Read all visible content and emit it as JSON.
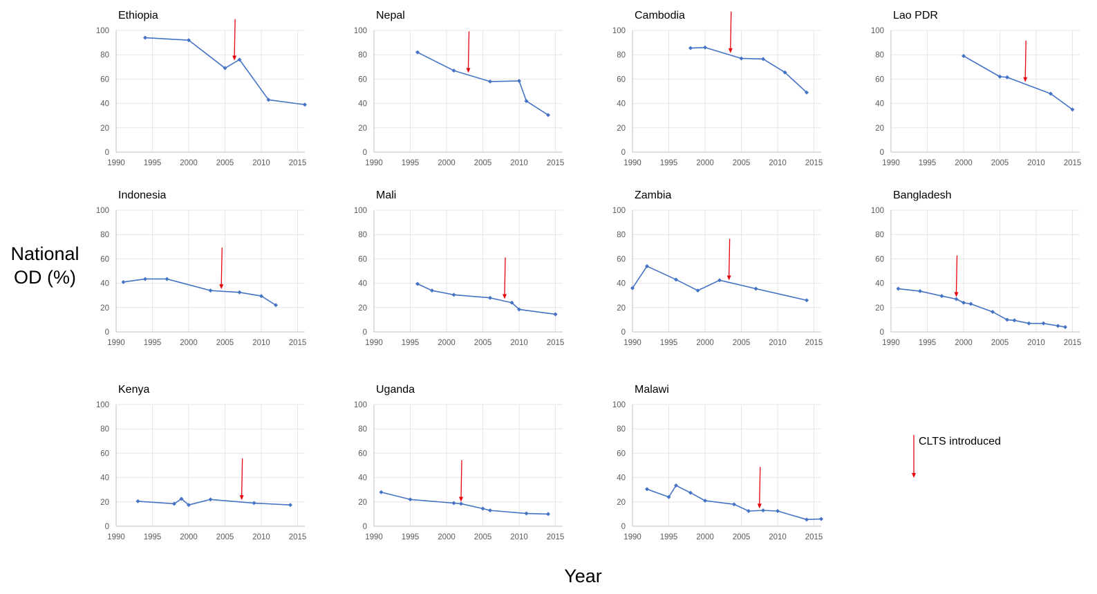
{
  "figure": {
    "y_label_line1": "National",
    "y_label_line2": "OD (%)",
    "x_label": "Year",
    "legend_label": "CLTS introduced",
    "line_color": "#4472C4",
    "arrow_color": "#E8000B"
  },
  "chart_data": [
    {
      "type": "line",
      "title": "Ethiopia",
      "xlim": [
        1990,
        2016
      ],
      "ylim": [
        0,
        100
      ],
      "x_ticks": [
        1990,
        1995,
        2000,
        2005,
        2010,
        2015
      ],
      "y_ticks": [
        0,
        20,
        40,
        60,
        80,
        100
      ],
      "grid": true,
      "x": [
        1994,
        2000,
        2005,
        2007,
        2011,
        2016
      ],
      "y": [
        94,
        92,
        69,
        76,
        43,
        39
      ],
      "clts_year": 2006.3
    },
    {
      "type": "line",
      "title": "Nepal",
      "xlim": [
        1990,
        2016
      ],
      "ylim": [
        0,
        100
      ],
      "x_ticks": [
        1990,
        1995,
        2000,
        2005,
        2010,
        2015
      ],
      "y_ticks": [
        0,
        20,
        40,
        60,
        80,
        100
      ],
      "grid": true,
      "x": [
        1996,
        2001,
        2006,
        2010,
        2011,
        2014
      ],
      "y": [
        82,
        67,
        58,
        58.5,
        42,
        30.5
      ],
      "clts_year": 2003
    },
    {
      "type": "line",
      "title": "Cambodia",
      "xlim": [
        1990,
        2016
      ],
      "ylim": [
        0,
        100
      ],
      "x_ticks": [
        1990,
        1995,
        2000,
        2005,
        2010,
        2015
      ],
      "y_ticks": [
        0,
        20,
        40,
        60,
        80,
        100
      ],
      "grid": true,
      "x": [
        1998,
        2000,
        2005,
        2008,
        2011,
        2014
      ],
      "y": [
        85.5,
        86,
        77,
        76.5,
        65.5,
        49
      ],
      "clts_year": 2003.5
    },
    {
      "type": "line",
      "title": "Lao PDR",
      "xlim": [
        1990,
        2016
      ],
      "ylim": [
        0,
        100
      ],
      "x_ticks": [
        1990,
        1995,
        2000,
        2005,
        2010,
        2015
      ],
      "y_ticks": [
        0,
        20,
        40,
        60,
        80,
        100
      ],
      "grid": true,
      "x": [
        2000,
        2005,
        2006,
        2012,
        2015
      ],
      "y": [
        79,
        62,
        61.5,
        48,
        35
      ],
      "clts_year": 2008.5
    },
    {
      "type": "line",
      "title": "Indonesia",
      "xlim": [
        1990,
        2016
      ],
      "ylim": [
        0,
        100
      ],
      "x_ticks": [
        1990,
        1995,
        2000,
        2005,
        2010,
        2015
      ],
      "y_ticks": [
        0,
        20,
        40,
        60,
        80,
        100
      ],
      "grid": true,
      "x": [
        1991,
        1994,
        1997,
        2003,
        2007,
        2010,
        2012
      ],
      "y": [
        41,
        43.5,
        43.5,
        34,
        32.5,
        29.5,
        22
      ],
      "clts_year": 2004.5
    },
    {
      "type": "line",
      "title": "Mali",
      "xlim": [
        1990,
        2016
      ],
      "ylim": [
        0,
        100
      ],
      "x_ticks": [
        1990,
        1995,
        2000,
        2005,
        2010,
        2015
      ],
      "y_ticks": [
        0,
        20,
        40,
        60,
        80,
        100
      ],
      "grid": true,
      "x": [
        1996,
        1998,
        2001,
        2006,
        2009,
        2010,
        2015
      ],
      "y": [
        39.5,
        34,
        30.5,
        28,
        24,
        18.5,
        14.5
      ],
      "clts_year": 2008
    },
    {
      "type": "line",
      "title": "Zambia",
      "xlim": [
        1990,
        2016
      ],
      "ylim": [
        0,
        100
      ],
      "x_ticks": [
        1990,
        1995,
        2000,
        2005,
        2010,
        2015
      ],
      "y_ticks": [
        0,
        20,
        40,
        60,
        80,
        100
      ],
      "grid": true,
      "x": [
        1990,
        1992,
        1996,
        1999,
        2002,
        2007,
        2014
      ],
      "y": [
        36,
        54,
        43,
        34,
        42.5,
        35.5,
        26
      ],
      "clts_year": 2003.3
    },
    {
      "type": "line",
      "title": "Bangladesh",
      "xlim": [
        1990,
        2016
      ],
      "ylim": [
        0,
        100
      ],
      "x_ticks": [
        1990,
        1995,
        2000,
        2005,
        2010,
        2015
      ],
      "y_ticks": [
        0,
        20,
        40,
        60,
        80,
        100
      ],
      "grid": true,
      "x": [
        1991,
        1994,
        1997,
        1999,
        2000,
        2001,
        2004,
        2006,
        2007,
        2009,
        2011,
        2013,
        2014
      ],
      "y": [
        35.5,
        33.5,
        29.5,
        27,
        24,
        23,
        16.5,
        10,
        9.5,
        7,
        7,
        5,
        4
      ],
      "clts_year": 1999
    },
    {
      "type": "line",
      "title": "Kenya",
      "xlim": [
        1990,
        2016
      ],
      "ylim": [
        0,
        100
      ],
      "x_ticks": [
        1990,
        1995,
        2000,
        2005,
        2010,
        2015
      ],
      "y_ticks": [
        0,
        20,
        40,
        60,
        80,
        100
      ],
      "grid": true,
      "x": [
        1993,
        1998,
        1999,
        2000,
        2003,
        2009,
        2014
      ],
      "y": [
        20.5,
        18.5,
        22.5,
        17.5,
        22,
        19,
        17.5
      ],
      "clts_year": 2007.3
    },
    {
      "type": "line",
      "title": "Uganda",
      "xlim": [
        1990,
        2016
      ],
      "ylim": [
        0,
        100
      ],
      "x_ticks": [
        1990,
        1995,
        2000,
        2005,
        2010,
        2015
      ],
      "y_ticks": [
        0,
        20,
        40,
        60,
        80,
        100
      ],
      "grid": true,
      "x": [
        1991,
        1995,
        2001,
        2002,
        2005,
        2006,
        2011,
        2014
      ],
      "y": [
        28,
        22,
        19,
        18.5,
        14.5,
        13,
        10.5,
        10
      ],
      "clts_year": 2002
    },
    {
      "type": "line",
      "title": "Malawi",
      "xlim": [
        1990,
        2016
      ],
      "ylim": [
        0,
        100
      ],
      "x_ticks": [
        1990,
        1995,
        2000,
        2005,
        2010,
        2015
      ],
      "y_ticks": [
        0,
        20,
        40,
        60,
        80,
        100
      ],
      "grid": true,
      "x": [
        1992,
        1995,
        1996,
        1998,
        2000,
        2004,
        2006,
        2008,
        2010,
        2014,
        2016
      ],
      "y": [
        30.5,
        24,
        33.5,
        27.5,
        21,
        18,
        12.5,
        13,
        12.5,
        5.5,
        6
      ],
      "clts_year": 2007.5
    }
  ]
}
